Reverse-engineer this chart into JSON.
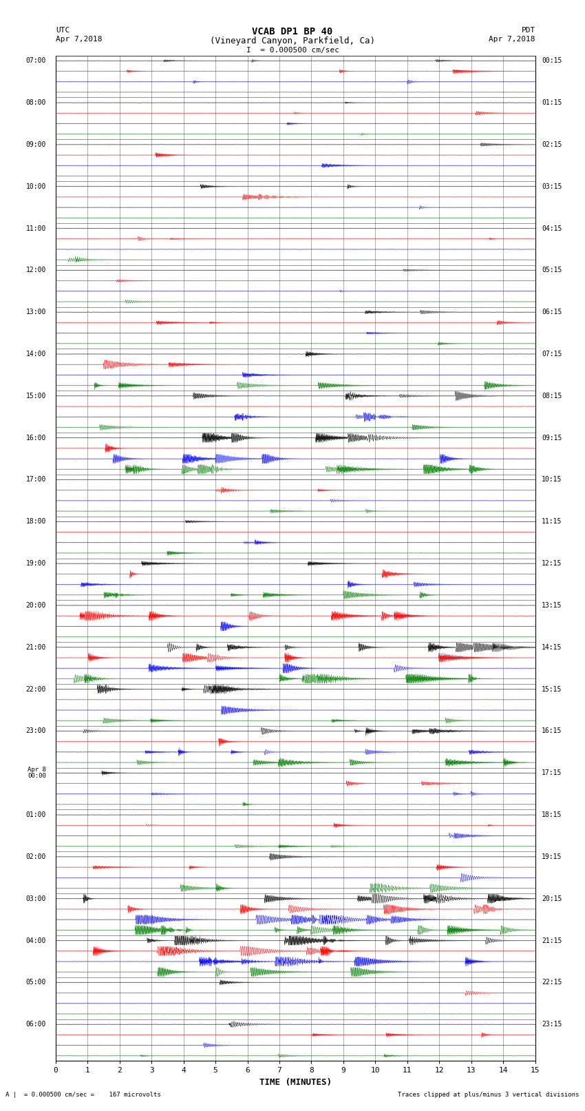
{
  "title_line1": "VCAB DP1 BP 40",
  "title_line2": "(Vineyard Canyon, Parkfield, Ca)",
  "scale_label": "I  = 0.000500 cm/sec",
  "left_label_line1": "UTC",
  "left_label_line2": "Apr 7,2018",
  "right_label_line1": "PDT",
  "right_label_line2": "Apr 7,2018",
  "bottom_left_label": "A |  = 0.000500 cm/sec =    167 microvolts",
  "bottom_right_label": "Traces clipped at plus/minus 3 vertical divisions",
  "xlabel": "TIME (MINUTES)",
  "utc_times": [
    "07:00",
    "08:00",
    "09:00",
    "10:00",
    "11:00",
    "12:00",
    "13:00",
    "14:00",
    "15:00",
    "16:00",
    "17:00",
    "18:00",
    "19:00",
    "20:00",
    "21:00",
    "22:00",
    "23:00",
    "Apr 8\n00:00",
    "01:00",
    "02:00",
    "03:00",
    "04:00",
    "05:00",
    "06:00"
  ],
  "pdt_times": [
    "00:15",
    "01:15",
    "02:15",
    "03:15",
    "04:15",
    "05:15",
    "06:15",
    "07:15",
    "08:15",
    "09:15",
    "10:15",
    "11:15",
    "12:15",
    "13:15",
    "14:15",
    "15:15",
    "16:15",
    "17:15",
    "18:15",
    "19:15",
    "20:15",
    "21:15",
    "22:15",
    "23:15"
  ],
  "n_hours": 24,
  "traces_per_hour": 4,
  "n_cols": 1800,
  "colors": [
    "black",
    "red",
    "blue",
    "green"
  ],
  "bg_color": "white",
  "grid_color": "#888888",
  "trace_amplitude": 0.38,
  "noise_base": 0.025,
  "figsize": [
    8.5,
    16.13
  ],
  "dpi": 100
}
